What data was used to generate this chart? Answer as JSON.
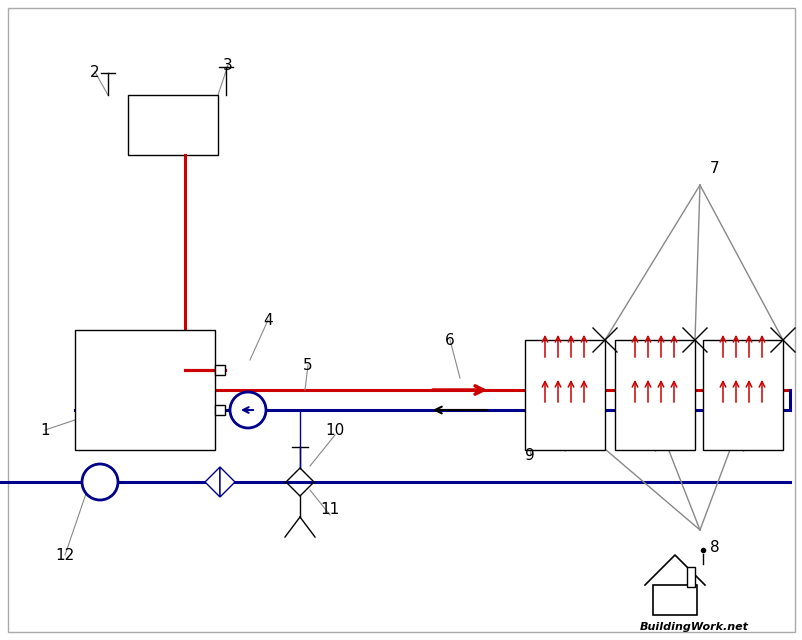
{
  "bg_color": "#ffffff",
  "red": "#cc0000",
  "blue": "#00008b",
  "black": "#000000",
  "gray": "#888888",
  "lw_main": 2.2,
  "lw_thin": 1.0,
  "figsize": [
    8.03,
    6.4
  ],
  "dpi": 100
}
